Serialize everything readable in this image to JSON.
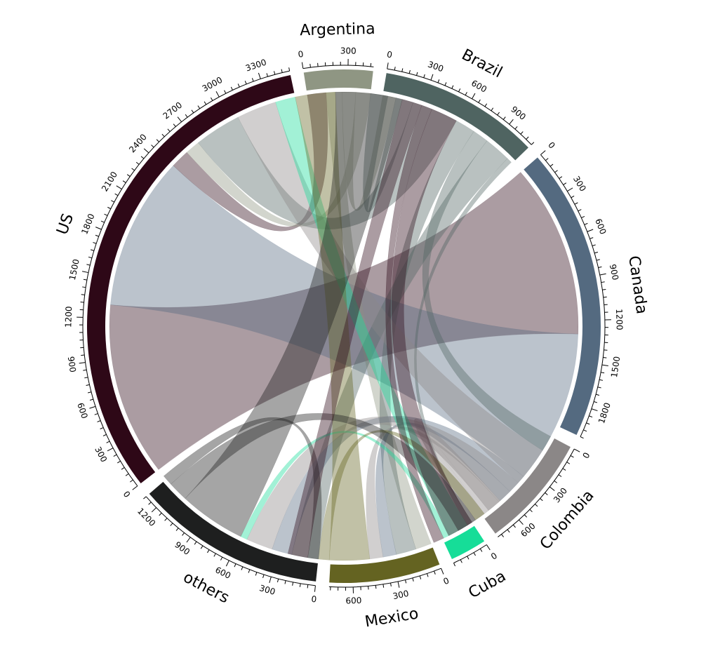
{
  "chart_data": {
    "type": "chord",
    "title": "",
    "sectors": [
      {
        "name": "Argentina",
        "total": 470,
        "color": "#8F9683",
        "tick_labels": [
          "0",
          "300"
        ]
      },
      {
        "name": "Brazil",
        "total": 1100,
        "color": "#4F6461",
        "tick_labels": [
          "0",
          "300",
          "600",
          "900"
        ]
      },
      {
        "name": "Canada",
        "total": 2000,
        "color": "#546A80",
        "tick_labels": [
          "0",
          "300",
          "600",
          "900",
          "1200",
          "1500",
          "1800"
        ]
      },
      {
        "name": "Colombia",
        "total": 780,
        "color": "#8B8787",
        "tick_labels": [
          "0",
          "300",
          "600"
        ]
      },
      {
        "name": "Cuba",
        "total": 250,
        "color": "#16DD98",
        "tick_labels": [
          "0"
        ]
      },
      {
        "name": "Mexico",
        "total": 760,
        "color": "#646321",
        "tick_labels": [
          "0",
          "300",
          "600"
        ]
      },
      {
        "name": "others",
        "total": 1300,
        "color": "#1E1F1F",
        "tick_labels": [
          "0",
          "300",
          "600",
          "900",
          "1200"
        ]
      },
      {
        "name": "US",
        "total": 3500,
        "color": "#2E0817",
        "tick_labels": [
          "0",
          "300",
          "600",
          "900",
          "1200",
          "1500",
          "1800",
          "2100",
          "2400",
          "2700",
          "3000",
          "3300"
        ]
      }
    ],
    "links": [
      {
        "from": "US",
        "to": "Canada",
        "value": 1300
      },
      {
        "from": "Canada",
        "to": "US",
        "value": 1150
      },
      {
        "from": "US",
        "to": "Argentina",
        "value": 140
      },
      {
        "from": "Argentina",
        "to": "Mexico",
        "value": 120
      },
      {
        "from": "Argentina",
        "to": "Brazil",
        "value": 100
      },
      {
        "from": "Argentina",
        "to": "US",
        "value": 110
      },
      {
        "from": "Brazil",
        "to": "Argentina",
        "value": 130
      },
      {
        "from": "Brazil",
        "to": "US",
        "value": 350
      },
      {
        "from": "Brazil",
        "to": "Mexico",
        "value": 150
      },
      {
        "from": "Brazil",
        "to": "Colombia",
        "value": 120
      },
      {
        "from": "Brazil",
        "to": "others",
        "value": 200
      },
      {
        "from": "Brazil",
        "to": "Cuba",
        "value": 40
      },
      {
        "from": "Canada",
        "to": "others",
        "value": 150
      },
      {
        "from": "Canada",
        "to": "Mexico",
        "value": 100
      },
      {
        "from": "Colombia",
        "to": "US",
        "value": 300
      },
      {
        "from": "Colombia",
        "to": "others",
        "value": 200
      },
      {
        "from": "Colombia",
        "to": "Mexico",
        "value": 100
      },
      {
        "from": "Colombia",
        "to": "Canada",
        "value": 150
      },
      {
        "from": "Cuba",
        "to": "US",
        "value": 150
      },
      {
        "from": "Cuba",
        "to": "others",
        "value": 50
      },
      {
        "from": "Mexico",
        "to": "US",
        "value": 300
      },
      {
        "from": "Mexico",
        "to": "Canada",
        "value": 80
      },
      {
        "from": "others",
        "to": "US",
        "value": 500
      },
      {
        "from": "others",
        "to": "Canada",
        "value": 150
      },
      {
        "from": "others",
        "to": "Mexico",
        "value": 80
      },
      {
        "from": "US",
        "to": "Mexico",
        "value": 150
      },
      {
        "from": "US",
        "to": "Cuba",
        "value": 80
      },
      {
        "from": "US",
        "to": "Colombia",
        "value": 200
      }
    ]
  }
}
